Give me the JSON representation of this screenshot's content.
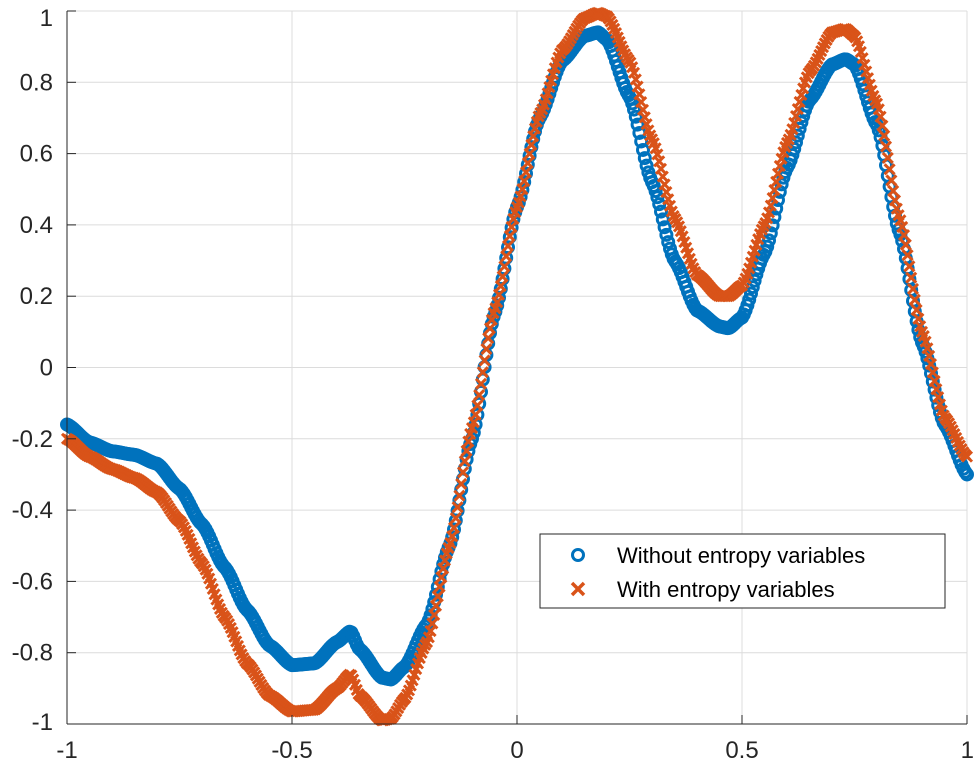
{
  "chart_data": {
    "type": "scatter",
    "title": "",
    "xlabel": "",
    "ylabel": "",
    "xlim": [
      -1,
      1
    ],
    "ylim": [
      -1,
      1
    ],
    "grid": true,
    "legend_position": "lower-right",
    "x_ticks": [
      -1,
      -0.5,
      0,
      0.5,
      1
    ],
    "x_tick_labels": [
      "-1",
      "-0.5",
      "0",
      "0.5",
      "1"
    ],
    "y_ticks": [
      1,
      0.8,
      0.6,
      0.4,
      0.2,
      0,
      -0.2,
      -0.4,
      -0.6,
      -0.8,
      -1
    ],
    "y_tick_labels": [
      "1",
      "0.8",
      "0.6",
      "0.4",
      "0.2",
      "0",
      "-0.2",
      "-0.4",
      "-0.6",
      "-0.8",
      "-1"
    ],
    "series": [
      {
        "name": "Without entropy variables",
        "marker": "circle",
        "color": "#0072BD",
        "x": [
          -1.0,
          -0.95,
          -0.9,
          -0.85,
          -0.8,
          -0.75,
          -0.7,
          -0.65,
          -0.6,
          -0.55,
          -0.5,
          -0.45,
          -0.4,
          -0.37,
          -0.35,
          -0.3,
          -0.28,
          -0.25,
          -0.2,
          -0.15,
          -0.1,
          -0.05,
          0.0,
          0.05,
          0.1,
          0.15,
          0.18,
          0.2,
          0.25,
          0.3,
          0.35,
          0.4,
          0.45,
          0.47,
          0.5,
          0.55,
          0.6,
          0.65,
          0.7,
          0.73,
          0.75,
          0.8,
          0.85,
          0.9,
          0.95,
          1.0
        ],
        "y": [
          -0.16,
          -0.21,
          -0.235,
          -0.245,
          -0.27,
          -0.34,
          -0.44,
          -0.56,
          -0.68,
          -0.78,
          -0.835,
          -0.83,
          -0.77,
          -0.74,
          -0.79,
          -0.87,
          -0.875,
          -0.84,
          -0.72,
          -0.5,
          -0.2,
          0.15,
          0.45,
          0.7,
          0.86,
          0.93,
          0.94,
          0.92,
          0.76,
          0.52,
          0.3,
          0.16,
          0.115,
          0.11,
          0.14,
          0.32,
          0.56,
          0.75,
          0.85,
          0.865,
          0.85,
          0.68,
          0.38,
          0.07,
          -0.16,
          -0.3
        ]
      },
      {
        "name": "With entropy variables",
        "marker": "x",
        "color": "#D95319",
        "x": [
          -1.0,
          -0.95,
          -0.9,
          -0.85,
          -0.8,
          -0.75,
          -0.7,
          -0.65,
          -0.6,
          -0.55,
          -0.5,
          -0.45,
          -0.4,
          -0.37,
          -0.35,
          -0.3,
          -0.28,
          -0.25,
          -0.2,
          -0.15,
          -0.1,
          -0.05,
          0.0,
          0.05,
          0.1,
          0.15,
          0.18,
          0.2,
          0.25,
          0.3,
          0.35,
          0.4,
          0.45,
          0.47,
          0.5,
          0.55,
          0.6,
          0.65,
          0.7,
          0.73,
          0.75,
          0.8,
          0.85,
          0.9,
          0.95,
          1.0
        ],
        "y": [
          -0.2,
          -0.25,
          -0.285,
          -0.31,
          -0.35,
          -0.43,
          -0.55,
          -0.7,
          -0.83,
          -0.92,
          -0.965,
          -0.96,
          -0.9,
          -0.86,
          -0.92,
          -0.99,
          -0.985,
          -0.93,
          -0.77,
          -0.5,
          -0.17,
          0.16,
          0.45,
          0.71,
          0.89,
          0.98,
          0.995,
          0.985,
          0.86,
          0.64,
          0.42,
          0.26,
          0.2,
          0.2,
          0.23,
          0.4,
          0.63,
          0.83,
          0.94,
          0.95,
          0.93,
          0.74,
          0.42,
          0.1,
          -0.14,
          -0.25
        ]
      }
    ]
  }
}
